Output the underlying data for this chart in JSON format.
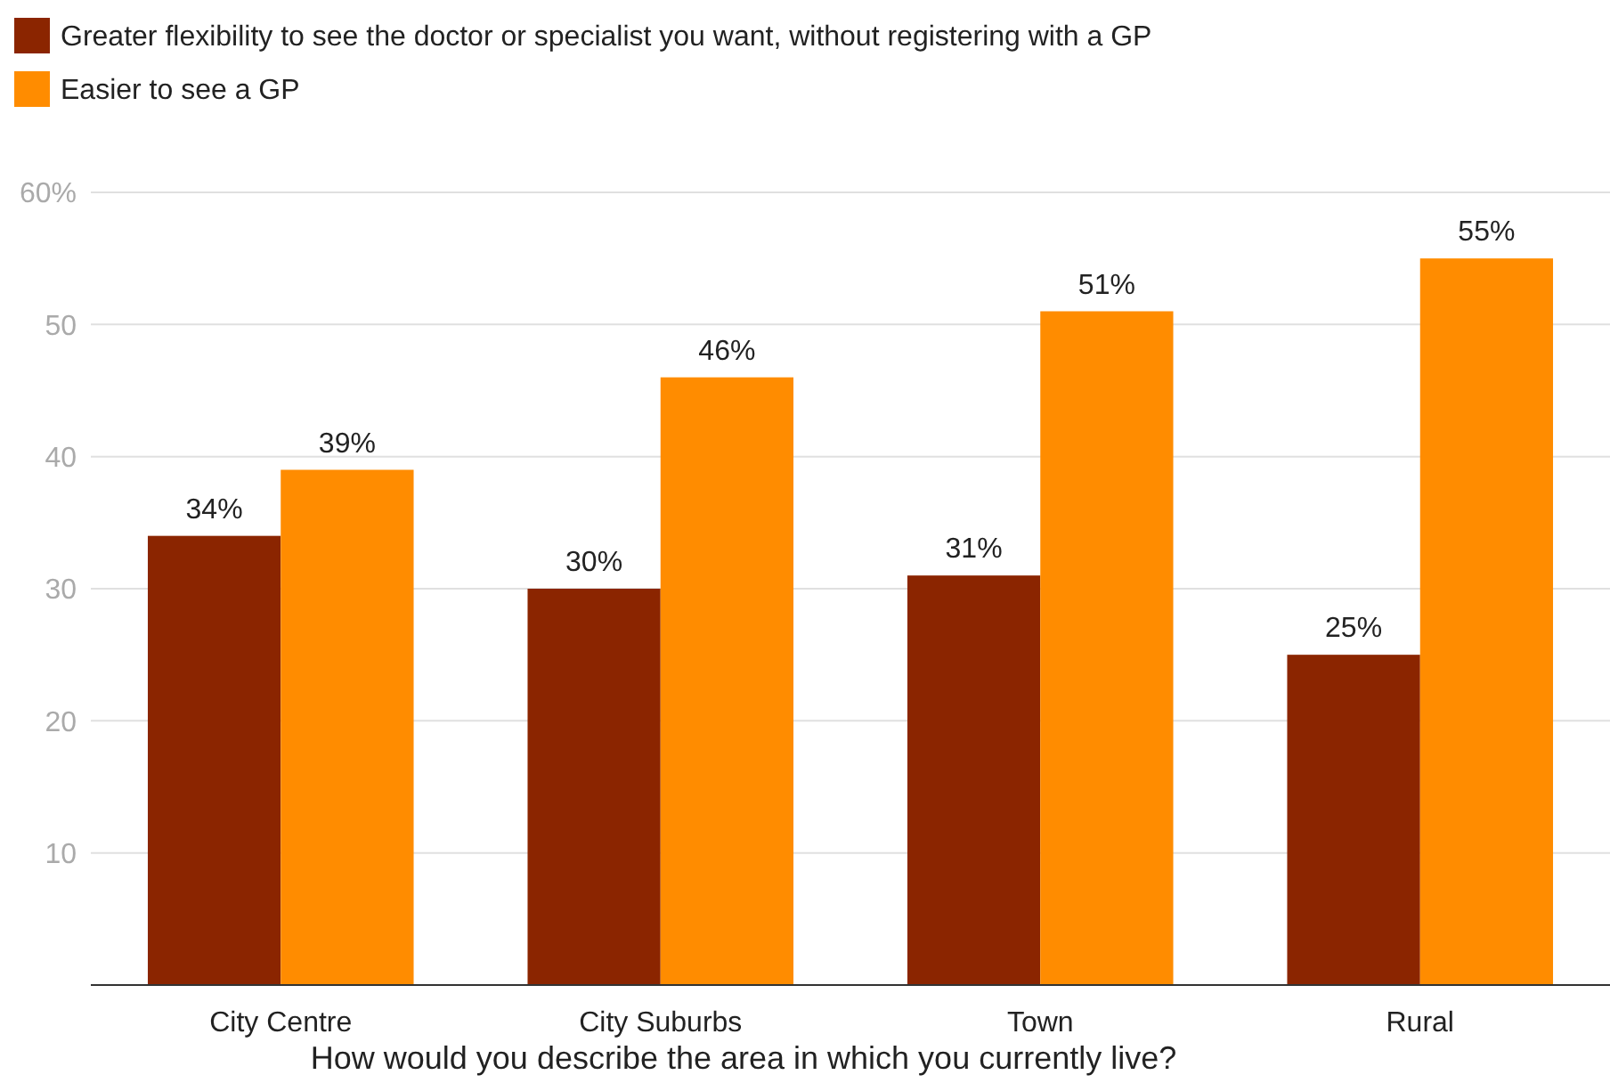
{
  "chart_data": {
    "type": "bar",
    "xlabel": "How would you describe the area in which you currently live?",
    "categories": [
      "City Centre",
      "City Suburbs",
      "Town",
      "Rural"
    ],
    "series": [
      {
        "name": "Greater flexibility to see the doctor or specialist you want, without registering with a GP",
        "color": "#8b2500",
        "values": [
          34,
          30,
          31,
          25
        ],
        "value_labels": [
          "34%",
          "30%",
          "31%",
          "25%"
        ]
      },
      {
        "name": "Easier to see a GP",
        "color": "#ff8c00",
        "values": [
          39,
          46,
          51,
          55
        ],
        "value_labels": [
          "39%",
          "46%",
          "51%",
          "55%"
        ]
      }
    ],
    "ylim": [
      0,
      60
    ],
    "yticks": [
      10,
      20,
      30,
      40,
      50,
      {
        "value": 60,
        "label": "60%"
      }
    ],
    "grid": "y",
    "legend": "top left"
  }
}
